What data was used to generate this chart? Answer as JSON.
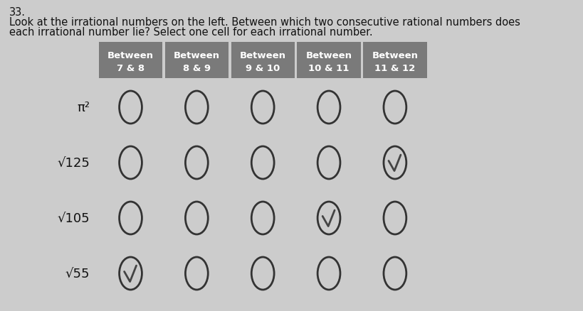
{
  "question_number": "33.",
  "question_text_line1": "Look at the irrational numbers on the left. Between which two consecutive rational numbers does",
  "question_text_line2": "each irrational number lie? Select one cell for each irrational number.",
  "col_header_line1": [
    "Between",
    "Between",
    "Between",
    "Between",
    "Between"
  ],
  "col_header_line2": [
    "7 & 8",
    "8 & 9",
    "9 & 10",
    "10 & 11",
    "11 & 12"
  ],
  "row_labels": [
    "π²",
    "√125",
    "√105",
    "√55"
  ],
  "checked": [
    [
      false,
      false,
      false,
      false,
      false
    ],
    [
      false,
      false,
      false,
      false,
      true
    ],
    [
      false,
      false,
      false,
      true,
      false
    ],
    [
      true,
      false,
      false,
      false,
      false
    ]
  ],
  "header_bg": "#7a7a7a",
  "header_text_color": "#ffffff",
  "bg_color": "#cccccc",
  "circle_edge_color": "#333333",
  "check_color": "#444444",
  "text_color": "#111111",
  "font_size_question": 10.5,
  "font_size_number": 10.5,
  "font_size_header": 9.5,
  "font_size_label": 13
}
